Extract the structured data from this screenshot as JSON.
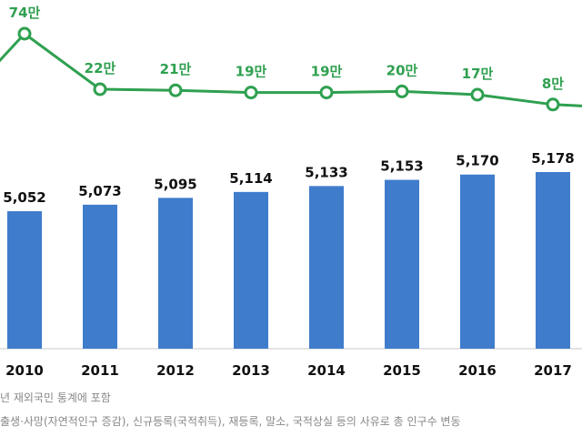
{
  "chart_data": {
    "type": "bar",
    "categories": [
      "2010",
      "2011",
      "2012",
      "2013",
      "2014",
      "2015",
      "2016",
      "2017"
    ],
    "series": [
      {
        "values": [
          5052,
          5073,
          5095,
          5114,
          5133,
          5153,
          5170,
          5178
        ],
        "labels": [
          "5,052",
          "5,073",
          "5,095",
          "5,114",
          "5,133",
          "5,153",
          "5,170",
          "5,178"
        ]
      },
      {
        "type": "line",
        "values": [
          74,
          22,
          21,
          19,
          19,
          20,
          17,
          8
        ],
        "labels": [
          "74만",
          "22만",
          "21만",
          "19만",
          "19만",
          "20만",
          "17만",
          "8만"
        ]
      }
    ],
    "bar_color": "#3f7ccc",
    "line_color": "#2fa050",
    "grid": false,
    "footnotes": [
      "년 재외국민 통계에 포함",
      "출생·사망(자연적인구 증감), 신규등록(국적취득), 재등록, 말소, 국적상실 등의 사유로 총 인구수 변동"
    ]
  }
}
